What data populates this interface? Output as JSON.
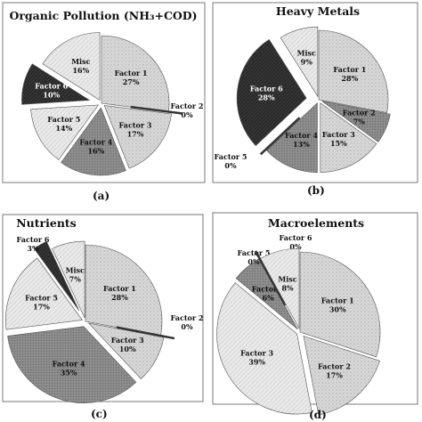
{
  "chart_data": [
    {
      "type": "pie",
      "panel": "(a)",
      "title": "Organic Pollution (NH₃+COD)",
      "slices": [
        {
          "label": "Factor 1",
          "value": 27,
          "value_text": "27%",
          "color": "#d9d9d9",
          "pattern": "stipple",
          "text_color": "#111111"
        },
        {
          "label": "Factor 2",
          "value": 0,
          "value_text": "0%",
          "color": "#3a3a3a",
          "pattern": "solid",
          "text_color": "#111111"
        },
        {
          "label": "Factor 3",
          "value": 17,
          "value_text": "17%",
          "color": "#dcdcdc",
          "pattern": "stipple",
          "text_color": "#111111"
        },
        {
          "label": "Factor 4",
          "value": 16,
          "value_text": "16%",
          "color": "#9a9a9a",
          "pattern": "dark",
          "text_color": "#111111"
        },
        {
          "label": "Factor 5",
          "value": 14,
          "value_text": "14%",
          "color": "#e6e6e6",
          "pattern": "light",
          "text_color": "#111111"
        },
        {
          "label": "Factor 6",
          "value": 10,
          "value_text": "10%",
          "color": "#2b2b2b",
          "pattern": "solid",
          "text_color": "#ffffff"
        },
        {
          "label": "Misc",
          "value": 16,
          "value_text": "16%",
          "color": "#e0e0e0",
          "pattern": "light",
          "text_color": "#111111"
        }
      ]
    },
    {
      "type": "pie",
      "panel": "(b)",
      "title": "Heavy Metals",
      "slices": [
        {
          "label": "Factor 1",
          "value": 28,
          "value_text": "28%",
          "color": "#d9d9d9",
          "pattern": "stipple",
          "text_color": "#111111"
        },
        {
          "label": "Factor 2",
          "value": 7,
          "value_text": "7%",
          "color": "#cfcfcf",
          "pattern": "dark",
          "text_color": "#111111"
        },
        {
          "label": "Factor 3",
          "value": 15,
          "value_text": "15%",
          "color": "#dcdcdc",
          "pattern": "stipple",
          "text_color": "#111111"
        },
        {
          "label": "Factor 4",
          "value": 13,
          "value_text": "13%",
          "color": "#9a9a9a",
          "pattern": "dark",
          "text_color": "#111111"
        },
        {
          "label": "Factor 5",
          "value": 0,
          "value_text": "0%",
          "color": "#e6e6e6",
          "pattern": "light",
          "text_color": "#111111"
        },
        {
          "label": "Factor 6",
          "value": 28,
          "value_text": "28%",
          "color": "#2b2b2b",
          "pattern": "solid",
          "text_color": "#ffffff"
        },
        {
          "label": "Misc",
          "value": 9,
          "value_text": "9%",
          "color": "#e0e0e0",
          "pattern": "light",
          "text_color": "#111111"
        }
      ]
    },
    {
      "type": "pie",
      "panel": "(c)",
      "title": "Nutrients",
      "slices": [
        {
          "label": "Factor 1",
          "value": 28,
          "value_text": "28%",
          "color": "#d9d9d9",
          "pattern": "stipple",
          "text_color": "#111111"
        },
        {
          "label": "Factor 2",
          "value": 0,
          "value_text": "0%",
          "color": "#3a3a3a",
          "pattern": "solid",
          "text_color": "#111111"
        },
        {
          "label": "Factor 3",
          "value": 10,
          "value_text": "10%",
          "color": "#dcdcdc",
          "pattern": "stipple",
          "text_color": "#111111"
        },
        {
          "label": "Factor 4",
          "value": 35,
          "value_text": "35%",
          "color": "#9a9a9a",
          "pattern": "dark",
          "text_color": "#111111"
        },
        {
          "label": "Factor 5",
          "value": 17,
          "value_text": "17%",
          "color": "#e6e6e6",
          "pattern": "light",
          "text_color": "#111111"
        },
        {
          "label": "Factor 6",
          "value": 3,
          "value_text": "3%",
          "color": "#2b2b2b",
          "pattern": "solid",
          "text_color": "#111111"
        },
        {
          "label": "Misc",
          "value": 7,
          "value_text": "7%",
          "color": "#e0e0e0",
          "pattern": "light",
          "text_color": "#111111"
        }
      ]
    },
    {
      "type": "pie",
      "panel": "(d)",
      "title": "Macroelements",
      "slices": [
        {
          "label": "Factor 1",
          "value": 30,
          "value_text": "30%",
          "color": "#d9d9d9",
          "pattern": "stipple",
          "text_color": "#111111"
        },
        {
          "label": "Factor 2",
          "value": 17,
          "value_text": "17%",
          "color": "#d4d4d4",
          "pattern": "stipple",
          "text_color": "#111111"
        },
        {
          "label": "Factor 3",
          "value": 39,
          "value_text": "39%",
          "color": "#e3e3e3",
          "pattern": "light",
          "text_color": "#111111"
        },
        {
          "label": "Factor 4",
          "value": 6,
          "value_text": "6%",
          "color": "#9a9a9a",
          "pattern": "dark",
          "text_color": "#111111"
        },
        {
          "label": "Factor 5",
          "value": 0,
          "value_text": "0%",
          "color": "#e6e6e6",
          "pattern": "light",
          "text_color": "#111111"
        },
        {
          "label": "Factor 6",
          "value": 0,
          "value_text": "0%",
          "color": "#2b2b2b",
          "pattern": "solid",
          "text_color": "#111111"
        },
        {
          "label": "Misc",
          "value": 8,
          "value_text": "8%",
          "color": "#e0e0e0",
          "pattern": "light",
          "text_color": "#111111"
        }
      ]
    }
  ]
}
